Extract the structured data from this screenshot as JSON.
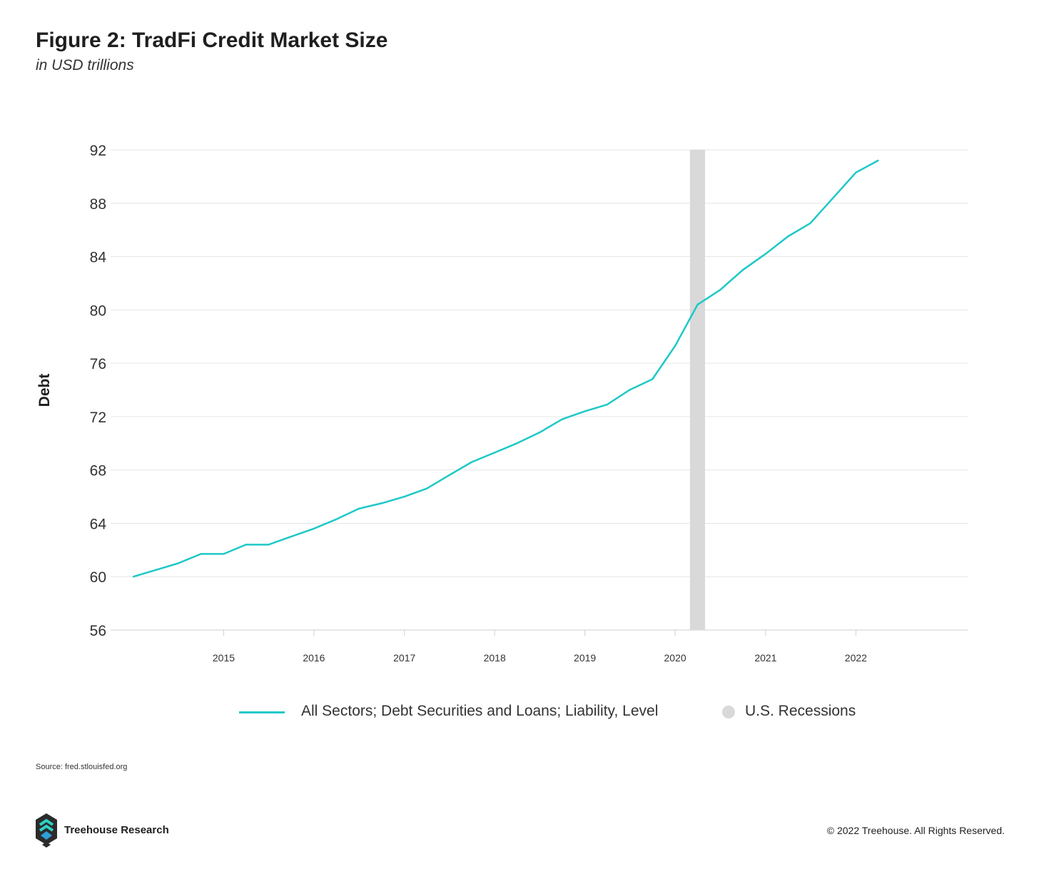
{
  "header": {
    "title": "Figure 2: TradFi Credit Market Size",
    "subtitle": "in USD trillions"
  },
  "footer": {
    "source": "Source: fred.stlouisfed.org",
    "brand": "Treehouse Research",
    "copyright": "© 2022 Treehouse. All Rights Reserved."
  },
  "colors": {
    "series": "#1ec8c8",
    "recession": "#d9d9d9",
    "grid": "#e6e6e6"
  },
  "chart_data": {
    "type": "line",
    "title": "Figure 2: TradFi Credit Market Size",
    "subtitle": "in USD trillions",
    "xlabel": "",
    "ylabel": "Debt",
    "ylim": [
      56,
      92
    ],
    "yticks": [
      56,
      60,
      64,
      68,
      72,
      76,
      80,
      84,
      88,
      92
    ],
    "xticks": [
      "2015",
      "2016",
      "2017",
      "2018",
      "2019",
      "2020",
      "2021",
      "2022"
    ],
    "xlim": [
      "2014-01-01",
      "2023-04-01"
    ],
    "grid": true,
    "legend_position": "bottom-center",
    "series": [
      {
        "name": "All Sectors; Debt Securities and Loans; Liability, Level",
        "color": "#1ec8c8",
        "points": [
          [
            "2014-01-01",
            60.0
          ],
          [
            "2014-04-01",
            60.5
          ],
          [
            "2014-07-01",
            61.0
          ],
          [
            "2014-10-01",
            61.7
          ],
          [
            "2015-01-01",
            61.7
          ],
          [
            "2015-04-01",
            62.4
          ],
          [
            "2015-07-01",
            62.4
          ],
          [
            "2015-10-01",
            63.0
          ],
          [
            "2016-01-01",
            63.6
          ],
          [
            "2016-04-01",
            64.3
          ],
          [
            "2016-07-01",
            65.1
          ],
          [
            "2016-10-01",
            65.5
          ],
          [
            "2017-01-01",
            66.0
          ],
          [
            "2017-04-01",
            66.6
          ],
          [
            "2017-07-01",
            67.6
          ],
          [
            "2017-10-01",
            68.6
          ],
          [
            "2018-01-01",
            69.3
          ],
          [
            "2018-04-01",
            70.0
          ],
          [
            "2018-07-01",
            70.8
          ],
          [
            "2018-10-01",
            71.8
          ],
          [
            "2019-01-01",
            72.4
          ],
          [
            "2019-04-01",
            72.9
          ],
          [
            "2019-07-01",
            74.0
          ],
          [
            "2019-10-01",
            74.8
          ],
          [
            "2020-01-01",
            77.3
          ],
          [
            "2020-04-01",
            80.4
          ],
          [
            "2020-07-01",
            81.5
          ],
          [
            "2020-10-01",
            83.0
          ],
          [
            "2021-01-01",
            84.2
          ],
          [
            "2021-04-01",
            85.5
          ],
          [
            "2021-07-01",
            86.5
          ],
          [
            "2021-10-01",
            88.4
          ],
          [
            "2022-01-01",
            90.3
          ],
          [
            "2022-04-01",
            91.2
          ]
        ]
      }
    ],
    "recessions": [
      {
        "name": "U.S. Recessions",
        "start": "2020-03-01",
        "end": "2020-05-01"
      }
    ]
  }
}
